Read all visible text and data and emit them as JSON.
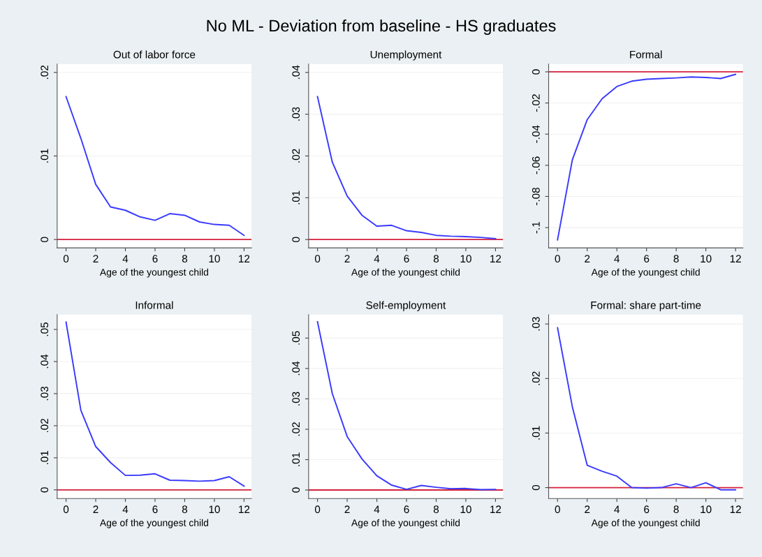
{
  "chart_data": [
    {
      "type": "other",
      "title": "No ML - Deviation from baseline - HS graduates"
    },
    {
      "type": "line",
      "title": "Out of labor force",
      "xlabel": "Age of the youngest child",
      "x": [
        0,
        1,
        2,
        3,
        4,
        5,
        6,
        7,
        8,
        9,
        10,
        11,
        12
      ],
      "series": [
        {
          "color": "#3a3aff",
          "values": [
            0.0171,
            0.0121,
            0.0066,
            0.0039,
            0.0035,
            0.0027,
            0.0023,
            0.0031,
            0.0029,
            0.0021,
            0.0018,
            0.0017,
            0.0005
          ]
        }
      ],
      "xlim": [
        -0.6,
        12.5
      ],
      "xticks": [
        0,
        2,
        4,
        6,
        8,
        10,
        12
      ],
      "ylim": [
        -0.001,
        0.021
      ],
      "yticks": [
        {
          "value": 0,
          "label": "0"
        },
        {
          "value": 0.01,
          "label": ".01"
        },
        {
          "value": 0.02,
          "label": ".02"
        }
      ],
      "ref_lines": [
        {
          "axis": "y",
          "value": 0,
          "color": "#d4213d"
        }
      ],
      "grid": "y"
    },
    {
      "type": "line",
      "title": "Unemployment",
      "xlabel": "Age of the youngest child",
      "x": [
        0,
        1,
        2,
        3,
        4,
        5,
        6,
        7,
        8,
        9,
        10,
        11,
        12
      ],
      "series": [
        {
          "color": "#3a3aff",
          "values": [
            0.0342,
            0.0185,
            0.0104,
            0.0058,
            0.0032,
            0.0034,
            0.0021,
            0.0017,
            0.001,
            0.0008,
            0.0007,
            0.0005,
            0.0002
          ]
        }
      ],
      "xlim": [
        -0.6,
        12.5
      ],
      "xticks": [
        0,
        2,
        4,
        6,
        8,
        10,
        12
      ],
      "ylim": [
        -0.002,
        0.042
      ],
      "yticks": [
        {
          "value": 0,
          "label": "0"
        },
        {
          "value": 0.01,
          "label": ".01"
        },
        {
          "value": 0.02,
          "label": ".02"
        },
        {
          "value": 0.03,
          "label": ".03"
        },
        {
          "value": 0.04,
          "label": ".04"
        }
      ],
      "ref_lines": [
        {
          "axis": "y",
          "value": 0,
          "color": "#d4213d"
        }
      ],
      "grid": "y"
    },
    {
      "type": "line",
      "title": "Formal",
      "xlabel": "Age of the youngest child",
      "x": [
        0,
        1,
        2,
        3,
        4,
        5,
        6,
        7,
        8,
        9,
        10,
        11,
        12
      ],
      "series": [
        {
          "color": "#3a3aff",
          "values": [
            -0.1079,
            -0.0564,
            -0.0307,
            -0.0173,
            -0.0094,
            -0.006,
            -0.0047,
            -0.0043,
            -0.0039,
            -0.0033,
            -0.0036,
            -0.0043,
            -0.0016
          ]
        }
      ],
      "xlim": [
        -0.6,
        12.5
      ],
      "xticks": [
        0,
        2,
        4,
        6,
        8,
        10,
        12
      ],
      "ylim": [
        -0.113,
        0.005
      ],
      "yticks": [
        {
          "value": -0.1,
          "label": "-.1"
        },
        {
          "value": -0.08,
          "label": "-.08"
        },
        {
          "value": -0.06,
          "label": "-.06"
        },
        {
          "value": -0.04,
          "label": "-.04"
        },
        {
          "value": -0.02,
          "label": "-.02"
        },
        {
          "value": 0,
          "label": "0"
        }
      ],
      "ref_lines": [
        {
          "axis": "y",
          "value": 0,
          "color": "#d4213d"
        }
      ],
      "grid": "y"
    },
    {
      "type": "line",
      "title": "Informal",
      "xlabel": "Age of the youngest child",
      "x": [
        0,
        1,
        2,
        3,
        4,
        5,
        6,
        7,
        8,
        9,
        10,
        11,
        12
      ],
      "series": [
        {
          "color": "#3a3aff",
          "values": [
            0.0523,
            0.0248,
            0.0135,
            0.0085,
            0.0045,
            0.0046,
            0.005,
            0.003,
            0.0029,
            0.0027,
            0.0029,
            0.0041,
            0.0012
          ]
        }
      ],
      "xlim": [
        -0.6,
        12.5
      ],
      "xticks": [
        0,
        2,
        4,
        6,
        8,
        10,
        12
      ],
      "ylim": [
        -0.0027,
        0.0546
      ],
      "yticks": [
        {
          "value": 0,
          "label": "0"
        },
        {
          "value": 0.01,
          "label": ".01"
        },
        {
          "value": 0.02,
          "label": ".02"
        },
        {
          "value": 0.03,
          "label": ".03"
        },
        {
          "value": 0.04,
          "label": ".04"
        },
        {
          "value": 0.05,
          "label": ".05"
        }
      ],
      "ref_lines": [
        {
          "axis": "y",
          "value": 0,
          "color": "#d4213d"
        }
      ],
      "grid": "y"
    },
    {
      "type": "line",
      "title": "Self-employment",
      "xlabel": "Age of the youngest child",
      "x": [
        0,
        1,
        2,
        3,
        4,
        5,
        6,
        7,
        8,
        9,
        10,
        11,
        12
      ],
      "series": [
        {
          "color": "#3a3aff",
          "values": [
            0.0554,
            0.0317,
            0.0176,
            0.0102,
            0.0047,
            0.0016,
            0.0002,
            0.0015,
            0.0009,
            0.0004,
            0.0005,
            0.0001,
            0.0002
          ]
        }
      ],
      "xlim": [
        -0.6,
        12.5
      ],
      "xticks": [
        0,
        2,
        4,
        6,
        8,
        10,
        12
      ],
      "ylim": [
        -0.0028,
        0.0577
      ],
      "yticks": [
        {
          "value": 0,
          "label": "0"
        },
        {
          "value": 0.01,
          "label": ".01"
        },
        {
          "value": 0.02,
          "label": ".02"
        },
        {
          "value": 0.03,
          "label": ".03"
        },
        {
          "value": 0.04,
          "label": ".04"
        },
        {
          "value": 0.05,
          "label": ".05"
        }
      ],
      "ref_lines": [
        {
          "axis": "y",
          "value": 0,
          "color": "#d4213d"
        }
      ],
      "grid": "y"
    },
    {
      "type": "line",
      "title": "Formal: share part-time",
      "xlabel": "Age of the youngest child",
      "x": [
        0,
        1,
        2,
        3,
        4,
        5,
        6,
        7,
        8,
        9,
        10,
        11,
        12
      ],
      "series": [
        {
          "color": "#3a3aff",
          "values": [
            0.0293,
            0.0148,
            0.0041,
            0.003,
            0.0021,
            0.0,
            -0.0001,
            0.0,
            0.0007,
            0.0,
            0.0009,
            -0.0004,
            -0.0004
          ]
        }
      ],
      "xlim": [
        -0.6,
        12.5
      ],
      "xticks": [
        0,
        2,
        4,
        6,
        8,
        10,
        12
      ],
      "ylim": [
        -0.002,
        0.0317
      ],
      "yticks": [
        {
          "value": 0,
          "label": "0"
        },
        {
          "value": 0.01,
          "label": ".01"
        },
        {
          "value": 0.02,
          "label": ".02"
        },
        {
          "value": 0.03,
          "label": ".03"
        }
      ],
      "ref_lines": [
        {
          "axis": "y",
          "value": 0,
          "color": "#d4213d"
        }
      ],
      "grid": "y"
    }
  ]
}
